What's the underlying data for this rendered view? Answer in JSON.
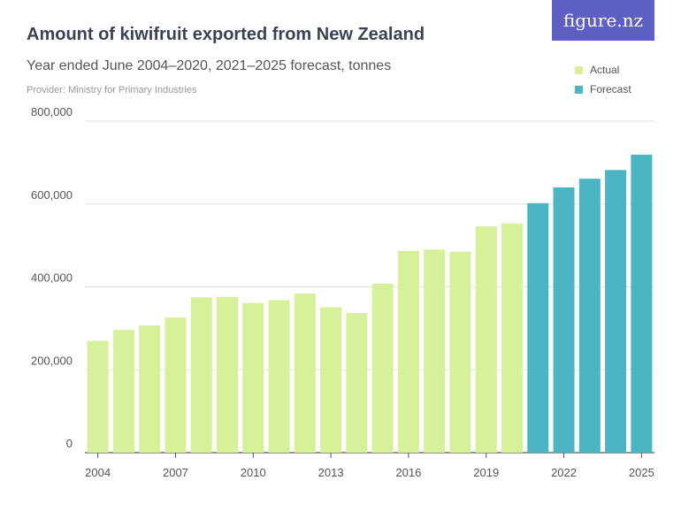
{
  "logo": {
    "text": "figure.nz"
  },
  "chart_data": {
    "type": "bar",
    "title": "Amount of kiwifruit exported from New Zealand",
    "subtitle": "Year ended June 2004–2020, 2021–2025 forecast, tonnes",
    "provider": "Provider: Ministry for Primary Industries",
    "categories": [
      "2004",
      "2005",
      "2006",
      "2007",
      "2008",
      "2009",
      "2010",
      "2011",
      "2012",
      "2013",
      "2014",
      "2015",
      "2016",
      "2017",
      "2018",
      "2019",
      "2020",
      "2021",
      "2022",
      "2023",
      "2024",
      "2025"
    ],
    "values": [
      270000,
      296000,
      307000,
      326000,
      375000,
      376000,
      361000,
      368000,
      384000,
      351000,
      337000,
      408000,
      487000,
      490000,
      485000,
      546000,
      553000,
      602000,
      640000,
      661000,
      682000,
      719000
    ],
    "kind": [
      "actual",
      "actual",
      "actual",
      "actual",
      "actual",
      "actual",
      "actual",
      "actual",
      "actual",
      "actual",
      "actual",
      "actual",
      "actual",
      "actual",
      "actual",
      "actual",
      "actual",
      "forecast",
      "forecast",
      "forecast",
      "forecast",
      "forecast"
    ],
    "series": [
      {
        "name": "Actual",
        "color": "#d7f09a"
      },
      {
        "name": "Forecast",
        "color": "#4cb5c4"
      }
    ],
    "x_tick_labels": [
      "2004",
      "2007",
      "2010",
      "2013",
      "2016",
      "2019",
      "2022",
      "2025"
    ],
    "y_ticks": [
      0,
      200000,
      400000,
      600000,
      800000
    ],
    "y_tick_labels": [
      "0",
      "200,000",
      "400,000",
      "600,000",
      "800,000"
    ],
    "ylim": [
      0,
      800000
    ],
    "xlabel": "",
    "ylabel": "",
    "grid": true,
    "legend_position": "top-right"
  }
}
